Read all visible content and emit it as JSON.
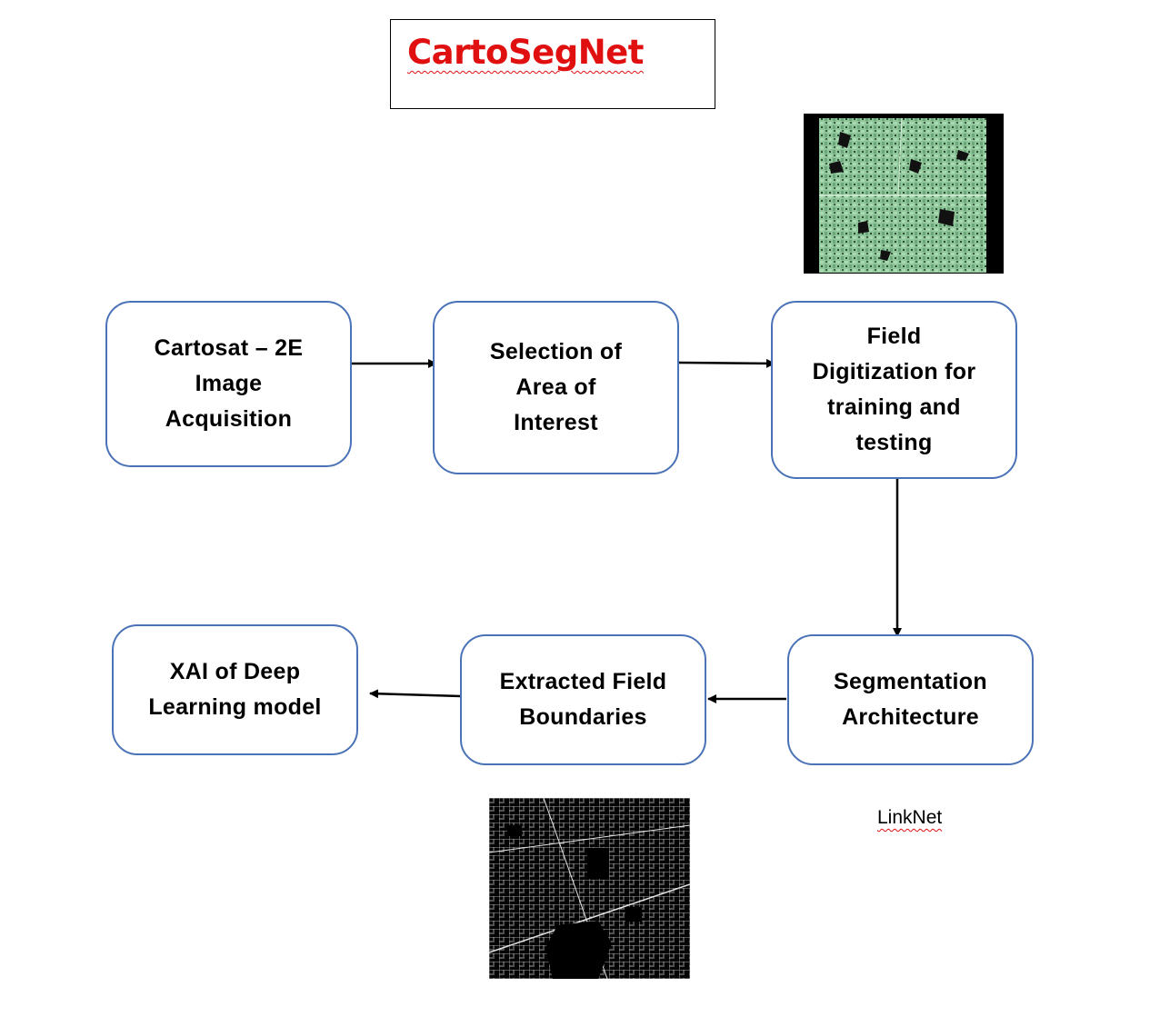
{
  "title": {
    "text": "CartoSegNet",
    "color": "#e01010"
  },
  "nodes": [
    {
      "id": "acquisition",
      "label": "Cartosat – 2E\nImage\nAcquisition"
    },
    {
      "id": "aoi",
      "label": "Selection of\nArea of\nInterest"
    },
    {
      "id": "digitization",
      "label": "Field\nDigitization for\ntraining and\ntesting"
    },
    {
      "id": "segmentation",
      "label": "Segmentation\nArchitecture"
    },
    {
      "id": "boundaries",
      "label": "Extracted Field\nBoundaries"
    },
    {
      "id": "xai",
      "label": "XAI of Deep\nLearning model"
    }
  ],
  "edges": [
    {
      "from": "acquisition",
      "to": "aoi"
    },
    {
      "from": "aoi",
      "to": "digitization"
    },
    {
      "from": "digitization",
      "to": "segmentation"
    },
    {
      "from": "segmentation",
      "to": "boundaries"
    },
    {
      "from": "boundaries",
      "to": "xai"
    }
  ],
  "annotation": {
    "text": "LinkNet"
  },
  "images": [
    {
      "name": "satellite-image-thumbnail",
      "description_color": "#8fc79a"
    },
    {
      "name": "boundary-mask-thumbnail",
      "description_color": "#000000"
    }
  ],
  "colors": {
    "node_border": "#4a72b6",
    "arrow": "#000000"
  }
}
